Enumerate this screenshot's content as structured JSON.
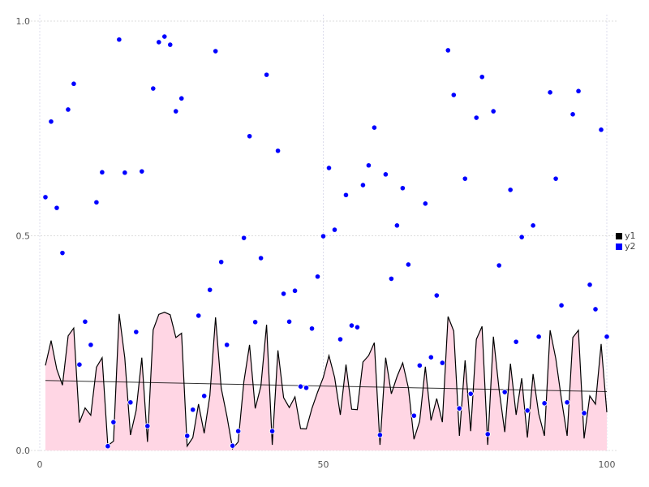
{
  "chart_data": {
    "type": "area",
    "xlim": [
      0,
      100
    ],
    "ylim": [
      0,
      1
    ],
    "x_ticks": [
      "0",
      "50",
      "100"
    ],
    "x_tick_values": [
      0,
      50,
      100
    ],
    "y_ticks": [
      "0.0",
      "0.5",
      "1.0"
    ],
    "y_tick_values": [
      0,
      0.5,
      1
    ],
    "grid": true,
    "legend_placement": "right",
    "x": [
      1,
      2,
      3,
      4,
      5,
      6,
      7,
      8,
      9,
      10,
      11,
      12,
      13,
      14,
      15,
      16,
      17,
      18,
      19,
      20,
      21,
      22,
      23,
      24,
      25,
      26,
      27,
      28,
      29,
      30,
      31,
      32,
      33,
      34,
      35,
      36,
      37,
      38,
      39,
      40,
      41,
      42,
      43,
      44,
      45,
      46,
      47,
      48,
      49,
      50,
      51,
      52,
      53,
      54,
      55,
      56,
      57,
      58,
      59,
      60,
      61,
      62,
      63,
      64,
      65,
      66,
      67,
      68,
      69,
      70,
      71,
      72,
      73,
      74,
      75,
      76,
      77,
      78,
      79,
      80,
      81,
      82,
      83,
      84,
      85,
      86,
      87,
      88,
      89,
      90,
      91,
      92,
      93,
      94,
      95,
      96,
      97,
      98,
      99,
      100
    ],
    "series": [
      {
        "name": "y1",
        "kind": "area-line",
        "color": "#000000",
        "fill": "#ffd6e4",
        "values": [
          0.198,
          0.256,
          0.189,
          0.152,
          0.267,
          0.285,
          0.065,
          0.099,
          0.082,
          0.194,
          0.216,
          0.011,
          0.022,
          0.318,
          0.216,
          0.036,
          0.093,
          0.216,
          0.02,
          0.281,
          0.317,
          0.322,
          0.316,
          0.263,
          0.273,
          0.01,
          0.03,
          0.108,
          0.04,
          0.128,
          0.31,
          0.145,
          0.08,
          0.004,
          0.02,
          0.16,
          0.246,
          0.098,
          0.15,
          0.293,
          0.013,
          0.233,
          0.123,
          0.1,
          0.125,
          0.051,
          0.05,
          0.098,
          0.136,
          0.17,
          0.221,
          0.17,
          0.083,
          0.2,
          0.096,
          0.095,
          0.206,
          0.221,
          0.251,
          0.013,
          0.216,
          0.132,
          0.172,
          0.204,
          0.146,
          0.026,
          0.068,
          0.195,
          0.07,
          0.121,
          0.066,
          0.312,
          0.278,
          0.034,
          0.21,
          0.045,
          0.259,
          0.289,
          0.013,
          0.265,
          0.142,
          0.043,
          0.202,
          0.083,
          0.168,
          0.03,
          0.178,
          0.085,
          0.034,
          0.28,
          0.214,
          0.119,
          0.034,
          0.263,
          0.28,
          0.028,
          0.127,
          0.108,
          0.248,
          0.089
        ]
      },
      {
        "name": "y2",
        "kind": "scatter",
        "color": "#0000ff",
        "values": [
          0.59,
          0.766,
          0.565,
          0.46,
          0.794,
          0.854,
          0.2,
          0.3,
          0.246,
          0.578,
          0.648,
          0.01,
          0.066,
          0.957,
          0.647,
          0.112,
          0.276,
          0.65,
          0.057,
          0.843,
          0.951,
          0.964,
          0.945,
          0.79,
          0.82,
          0.034,
          0.095,
          0.314,
          0.127,
          0.374,
          0.93,
          0.439,
          0.246,
          0.011,
          0.045,
          0.495,
          0.732,
          0.299,
          0.448,
          0.875,
          0.045,
          0.698,
          0.365,
          0.3,
          0.372,
          0.149,
          0.146,
          0.284,
          0.405,
          0.499,
          0.658,
          0.514,
          0.259,
          0.595,
          0.291,
          0.287,
          0.618,
          0.664,
          0.752,
          0.036,
          0.643,
          0.4,
          0.524,
          0.611,
          0.433,
          0.081,
          0.198,
          0.575,
          0.217,
          0.361,
          0.204,
          0.932,
          0.828,
          0.098,
          0.633,
          0.132,
          0.775,
          0.87,
          0.038,
          0.79,
          0.431,
          0.136,
          0.607,
          0.253,
          0.497,
          0.093,
          0.524,
          0.265,
          0.11,
          0.834,
          0.633,
          0.338,
          0.112,
          0.783,
          0.837,
          0.087,
          0.386,
          0.329,
          0.747,
          0.265
        ]
      }
    ],
    "trend_line": {
      "x": [
        1,
        100
      ],
      "y": [
        0.163,
        0.137
      ],
      "color": "#000000"
    }
  }
}
